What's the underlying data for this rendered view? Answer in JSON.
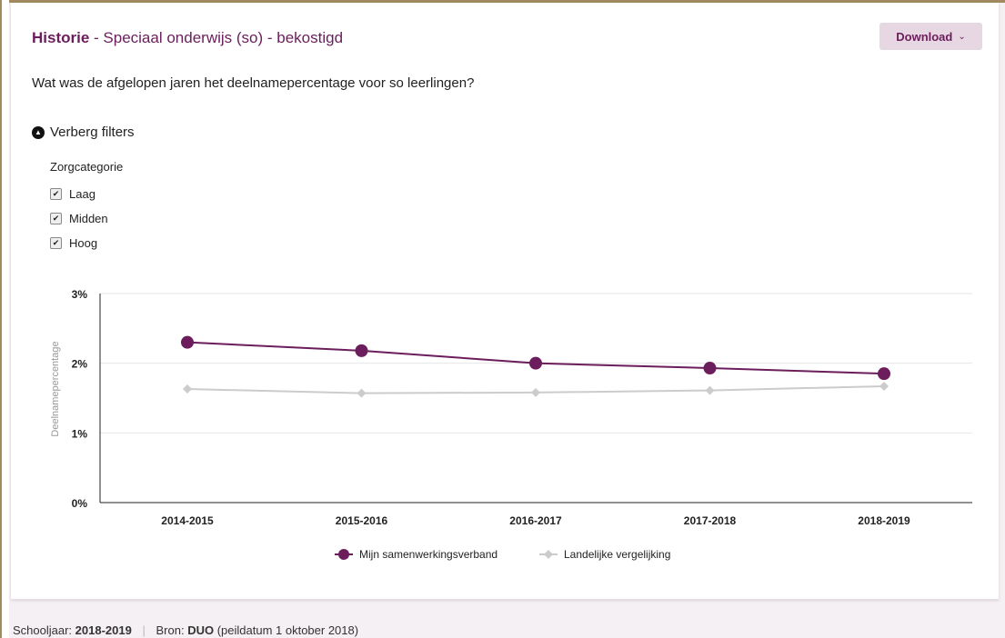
{
  "header": {
    "title_bold": "Historie",
    "title_rest": " - Speciaal onderwijs (so) - bekostigd",
    "download_label": "Download"
  },
  "question": "Wat was de afgelopen jaren het deelnamepercentage voor so leerlingen?",
  "filters": {
    "toggle_label": "Verberg filters",
    "group_label": "Zorgcategorie",
    "options": [
      {
        "label": "Laag",
        "checked": true
      },
      {
        "label": "Midden",
        "checked": true
      },
      {
        "label": "Hoog",
        "checked": true
      }
    ]
  },
  "chart_data": {
    "type": "line",
    "categories": [
      "2014-2015",
      "2015-2016",
      "2016-2017",
      "2017-2018",
      "2018-2019"
    ],
    "series": [
      {
        "name": "Mijn samenwerkingsverband",
        "color": "#6b1d5c",
        "marker": "circle",
        "values": [
          2.3,
          2.18,
          2.0,
          1.93,
          1.85
        ]
      },
      {
        "name": "Landelijke vergelijking",
        "color": "#cccccc",
        "marker": "diamond",
        "values": [
          1.63,
          1.57,
          1.58,
          1.61,
          1.67
        ]
      }
    ],
    "ylabel": "Deelnamepercentage",
    "yticks": [
      "0%",
      "1%",
      "2%",
      "3%"
    ],
    "ylim": [
      0,
      3
    ],
    "grid": true,
    "legend": "bottom-center"
  },
  "footer": {
    "year_label": "Schooljaar:",
    "year_value": "2018-2019",
    "source_label": "Bron:",
    "source_value": "DUO",
    "source_note": "(peildatum 1 oktober 2018)"
  }
}
